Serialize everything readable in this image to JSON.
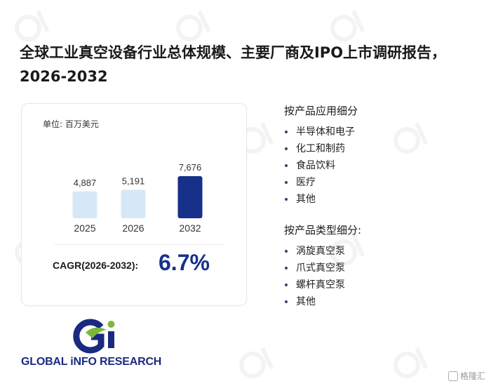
{
  "title": "全球工业真空设备行业总体规模、主要厂商及IPO上市调研报告，2026-2032",
  "chart_data": {
    "type": "bar",
    "unit_label": "单位: 百万美元",
    "categories": [
      "2025",
      "2026",
      "2032"
    ],
    "values": [
      4887,
      5191,
      7676
    ],
    "value_labels": [
      "4,887",
      "5,191",
      "7,676"
    ],
    "colors": [
      "#d6e8f8",
      "#d6e8f8",
      "#17308a"
    ],
    "ylim": [
      0,
      7676
    ]
  },
  "cagr": {
    "label": "CAGR(2026-2032):",
    "value": "6.7%"
  },
  "segments": {
    "application_title": "按产品应用细分",
    "application_items": [
      "半导体和电子",
      "化工和制药",
      "食品饮料",
      "医疗",
      "其他"
    ],
    "type_title": "按产品类型细分:",
    "type_items": [
      "涡旋真空泵",
      "爪式真空泵",
      "螺杆真空泵",
      "其他"
    ]
  },
  "logo": {
    "text": "GLOBAL iNFO RESEARCH"
  },
  "brand": {
    "text": "格隆汇"
  },
  "colors": {
    "accent": "#17308a",
    "bar_light": "#d6e8f8",
    "logo_green": "#7bb83a",
    "logo_blue": "#1a2a80"
  }
}
